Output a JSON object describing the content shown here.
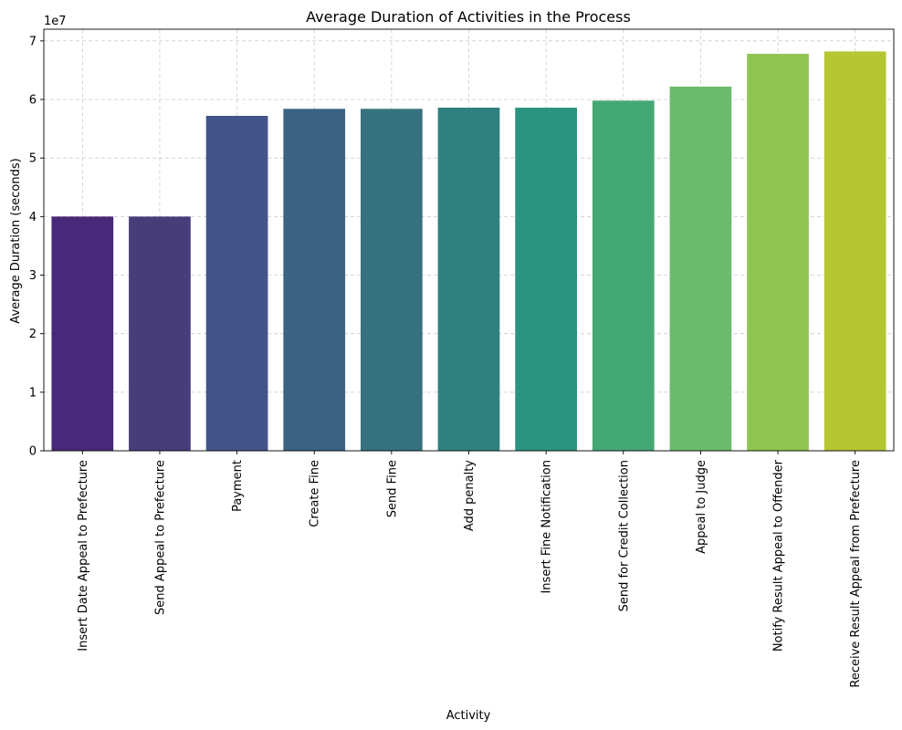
{
  "chart_data": {
    "type": "bar",
    "title": "Average Duration of Activities in the Process",
    "xlabel": "Activity",
    "ylabel": "Average Duration (seconds)",
    "y_offset_label": "1e7",
    "y_scale": 10000000,
    "ylim": [
      0,
      72000000
    ],
    "yticks": [
      0,
      10000000,
      20000000,
      30000000,
      40000000,
      50000000,
      60000000,
      70000000
    ],
    "ytick_labels": [
      "0",
      "1",
      "2",
      "3",
      "4",
      "5",
      "6",
      "7"
    ],
    "grid": true,
    "categories": [
      "Insert Date Appeal to Prefecture",
      "Send Appeal to Prefecture",
      "Payment",
      "Create Fine",
      "Send Fine",
      "Add penalty",
      "Insert Fine Notification",
      "Send for Credit Collection",
      "Appeal to Judge",
      "Notify Result Appeal to Offender",
      "Receive Result Appeal from Prefecture"
    ],
    "values": [
      40000000,
      40000000,
      57200000,
      58400000,
      58400000,
      58600000,
      58600000,
      59800000,
      62200000,
      67800000,
      68200000
    ],
    "colors": [
      "#482878",
      "#483d7b",
      "#43548a",
      "#3b6283",
      "#35727e",
      "#2e8180",
      "#2a9480",
      "#44a875",
      "#6abb6a",
      "#91c552",
      "#b5c633"
    ]
  }
}
